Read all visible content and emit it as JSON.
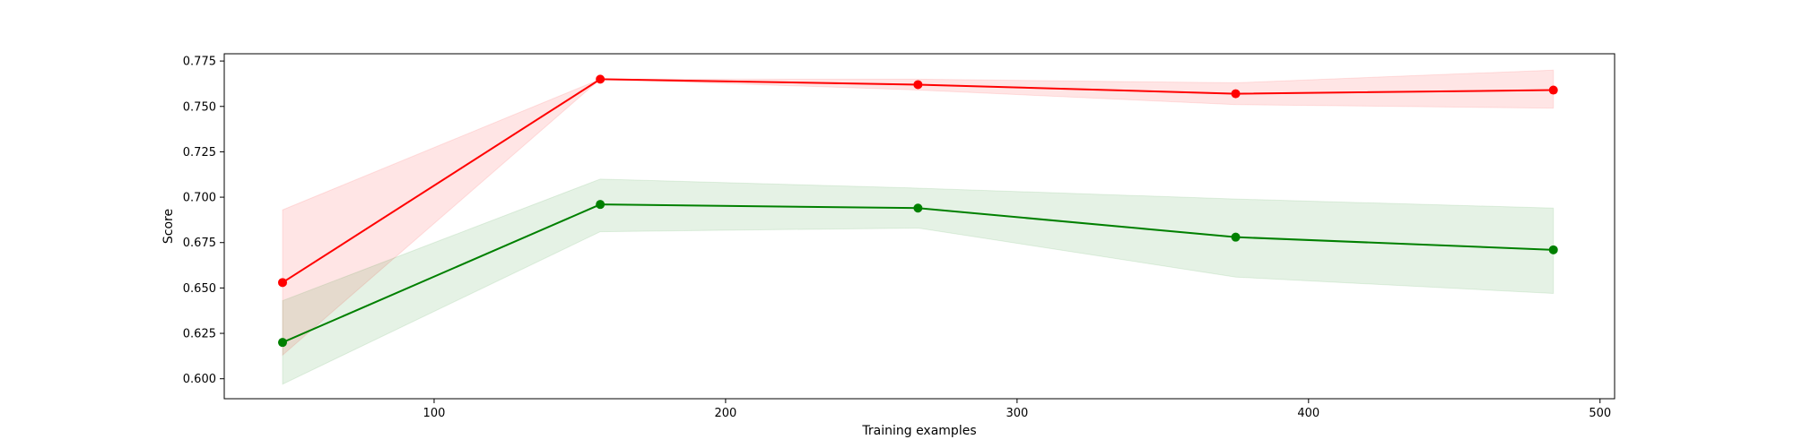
{
  "chart_data": {
    "type": "line",
    "title": "",
    "xlabel": "Training examples",
    "ylabel": "Score",
    "xlim": [
      28,
      505
    ],
    "ylim": [
      0.589,
      0.779
    ],
    "xticks": [
      100,
      200,
      300,
      400,
      500
    ],
    "xtick_labels": [
      "100",
      "200",
      "300",
      "400",
      "500"
    ],
    "yticks": [
      0.6,
      0.625,
      0.65,
      0.675,
      0.7,
      0.725,
      0.75,
      0.775
    ],
    "ytick_labels": [
      "0.600",
      "0.625",
      "0.650",
      "0.675",
      "0.700",
      "0.725",
      "0.750",
      "0.775"
    ],
    "grid": false,
    "x": [
      48,
      157,
      266,
      375,
      484
    ],
    "series": [
      {
        "color": "#ff0000",
        "fill_color": "#ff0000",
        "values": [
          0.653,
          0.765,
          0.762,
          0.757,
          0.759
        ],
        "upper": [
          0.693,
          0.765,
          0.765,
          0.763,
          0.77
        ],
        "lower": [
          0.613,
          0.765,
          0.759,
          0.751,
          0.749
        ]
      },
      {
        "color": "#008000",
        "fill_color": "#008000",
        "values": [
          0.62,
          0.696,
          0.694,
          0.678,
          0.671
        ],
        "upper": [
          0.643,
          0.71,
          0.705,
          0.699,
          0.694
        ],
        "lower": [
          0.597,
          0.681,
          0.683,
          0.656,
          0.647
        ]
      }
    ]
  }
}
